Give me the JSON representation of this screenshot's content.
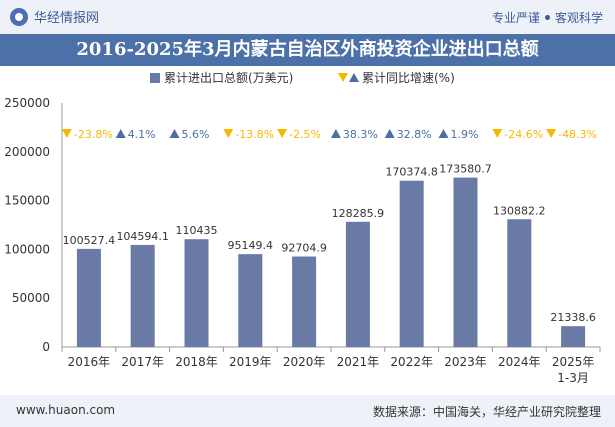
{
  "header": {
    "brand": "华经情报网",
    "tagline_left": "专业严谨",
    "tagline_right": "客观科学"
  },
  "footer": {
    "url": "www.huaon.com",
    "source": "数据来源：中国海关，华经产业研究院整理"
  },
  "colors": {
    "bar": "#6a7aa6",
    "up": "#4a6fa0",
    "down": "#f5b800"
  },
  "chart_data": {
    "type": "bar",
    "title": "2016-2025年3月内蒙古自治区外商投资企业进出口总额",
    "legend": [
      {
        "name": "累计进出口总额(万美元)",
        "marker": "bar"
      },
      {
        "name": "累计同比增速(%)",
        "marker": "triangle"
      }
    ],
    "categories": [
      "2016年",
      "2017年",
      "2018年",
      "2019年",
      "2020年",
      "2021年",
      "2022年",
      "2023年",
      "2024年",
      "2025年1-3月"
    ],
    "values": [
      100527.4,
      104594.1,
      110435,
      95149.4,
      92704.9,
      128285.9,
      170374.8,
      173580.7,
      130882.2,
      21338.6
    ],
    "value_labels": [
      "100527.4",
      "104594.1",
      "110435",
      "95149.4",
      "92704.9",
      "128285.9",
      "170374.8",
      "173580.7",
      "130882.2",
      "21338.6"
    ],
    "growth": [
      -23.8,
      4.1,
      5.6,
      -13.8,
      -2.5,
      38.3,
      32.8,
      1.9,
      -24.6,
      -48.3
    ],
    "growth_labels": [
      "-23.8%",
      "4.1%",
      "5.6%",
      "-13.8%",
      "-2.5%",
      "38.3%",
      "32.8%",
      "1.9%",
      "-24.6%",
      "-48.3%"
    ],
    "ylim": [
      0,
      250000
    ],
    "yticks": [
      "250000",
      "200000",
      "150000",
      "100000",
      "50000",
      "0"
    ]
  }
}
